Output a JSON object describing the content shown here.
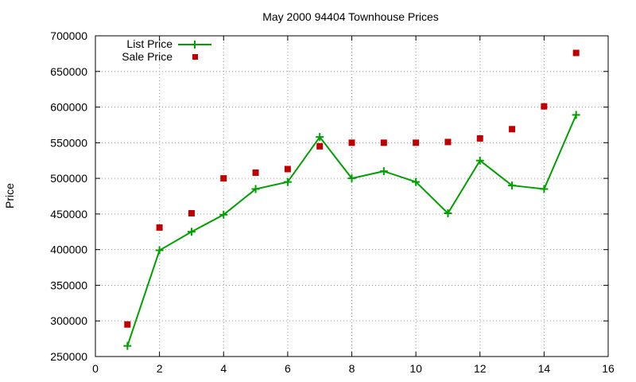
{
  "chart_data": {
    "type": "line",
    "title": "May 2000 94404 Townhouse Prices",
    "xlabel": "",
    "ylabel": "Price",
    "xlim": [
      0,
      16
    ],
    "ylim": [
      250000,
      700000
    ],
    "x_ticks": [
      0,
      2,
      4,
      6,
      8,
      10,
      12,
      14,
      16
    ],
    "y_ticks": [
      250000,
      300000,
      350000,
      400000,
      450000,
      500000,
      550000,
      600000,
      650000,
      700000
    ],
    "grid": true,
    "legend_position": "top-left",
    "series": [
      {
        "name": "List Price",
        "style": "line-with-plus-markers",
        "color": "#00a000",
        "x": [
          1,
          2,
          3,
          4,
          5,
          6,
          7,
          8,
          9,
          10,
          11,
          12,
          13,
          14,
          15
        ],
        "y": [
          265000,
          399000,
          425000,
          449000,
          485000,
          495000,
          558000,
          500000,
          510000,
          495000,
          451000,
          525000,
          490000,
          485000,
          589000
        ]
      },
      {
        "name": "Sale Price",
        "style": "square-markers",
        "color": "#c00000",
        "x": [
          1,
          2,
          3,
          4,
          5,
          6,
          7,
          8,
          9,
          10,
          11,
          12,
          13,
          14,
          15
        ],
        "y": [
          295000,
          431000,
          451000,
          500000,
          508000,
          513000,
          545000,
          550000,
          550000,
          550000,
          551000,
          556000,
          569000,
          601000,
          676000
        ]
      }
    ]
  }
}
